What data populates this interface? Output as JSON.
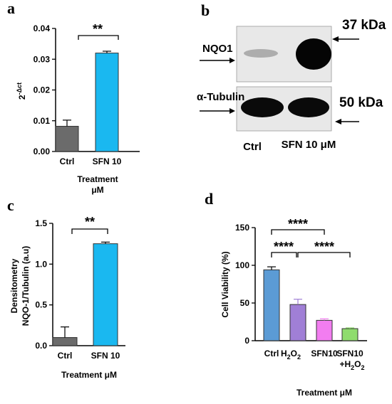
{
  "panel_a": {
    "letter": "a",
    "ylabel_base": "2",
    "ylabel_exp": "-Δct",
    "yticks": [
      "0.00",
      "0.01",
      "0.02",
      "0.03",
      "0.04"
    ],
    "xlabel_line1": "Treatment",
    "xlabel_line2": "μM",
    "sig": "**"
  },
  "panel_b": {
    "letter": "b",
    "band1_label": "NQO1",
    "band2_label": "α-Tubulin",
    "kda1": "37 kDa",
    "kda2": "50 kDa",
    "lane1": "Ctrl",
    "lane2": "SFN 10 μM"
  },
  "panel_c": {
    "letter": "c",
    "ylabel_line1": "Densitometry",
    "ylabel_line2": "NQO-1/Tubulin (a.u)",
    "yticks": [
      "0.0",
      "0.5",
      "1.0",
      "1.5"
    ],
    "xlabel": "Treatment μM",
    "sig": "**"
  },
  "panel_d": {
    "letter": "d",
    "ylabel": "Cell Viability (%)",
    "yticks": [
      "0",
      "50",
      "100",
      "150"
    ],
    "xlabel": "Treatment μM",
    "sig1": "****",
    "sig2": "****",
    "sig3": "****",
    "h2o2_main": "H",
    "h2o2_sub": "2",
    "h2o2_end": "O",
    "h2o2_sub2": "2",
    "combo_line1": "SFN10",
    "combo_line2_main": "+H",
    "combo_line2_sub": "2",
    "combo_line2_end": "O",
    "combo_line2_sub2": "2"
  },
  "chart_data": [
    {
      "type": "bar",
      "panel": "a",
      "categories": [
        "Ctrl",
        "SFN 10"
      ],
      "values": [
        0.0082,
        0.032
      ],
      "errors": [
        0.002,
        0.0006
      ],
      "colors": [
        "#6b6b6b",
        "#1ab8f0"
      ],
      "ylabel": "2-Δct",
      "xlabel": "Treatment μM",
      "ylim": [
        0,
        0.04
      ]
    },
    {
      "type": "bar",
      "panel": "c",
      "categories": [
        "Ctrl",
        "SFN 10"
      ],
      "values": [
        0.1,
        1.25
      ],
      "errors": [
        0.13,
        0.02
      ],
      "colors": [
        "#6b6b6b",
        "#1ab8f0"
      ],
      "ylabel": "Densitometry NQO-1/Tubulin (a.u)",
      "xlabel": "Treatment μM",
      "ylim": [
        0,
        1.5
      ]
    },
    {
      "type": "bar",
      "panel": "d",
      "categories": [
        "Ctrl",
        "H2O2",
        "SFN10",
        "SFN10 +H2O2"
      ],
      "values": [
        94,
        48,
        27,
        16
      ],
      "errors": [
        4,
        7,
        2,
        1
      ],
      "colors": [
        "#5b9bd5",
        "#a07fd6",
        "#f27df0",
        "#8fdc6e"
      ],
      "ylabel": "Cell Viability (%)",
      "xlabel": "Treatment μM",
      "ylim": [
        0,
        150
      ]
    }
  ]
}
